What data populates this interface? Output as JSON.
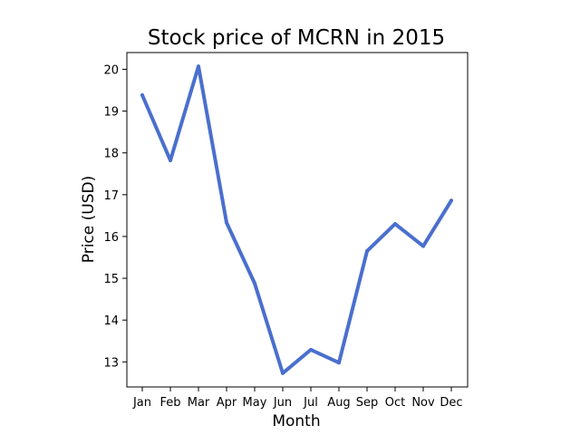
{
  "chart_data": {
    "type": "line",
    "title": "Stock price of MCRN in 2015",
    "xlabel": "Month",
    "ylabel": "Price (USD)",
    "categories": [
      "Jan",
      "Feb",
      "Mar",
      "Apr",
      "May",
      "Jun",
      "Jul",
      "Aug",
      "Sep",
      "Oct",
      "Nov",
      "Dec"
    ],
    "values": [
      19.38,
      17.82,
      20.07,
      16.33,
      14.88,
      12.73,
      13.29,
      12.98,
      15.65,
      16.3,
      15.77,
      16.86
    ],
    "yticks": [
      13,
      14,
      15,
      16,
      17,
      18,
      19,
      20
    ],
    "ylim": [
      12.4,
      20.4
    ],
    "line_color": "#4a6fce",
    "grid": false,
    "legend": "none"
  }
}
